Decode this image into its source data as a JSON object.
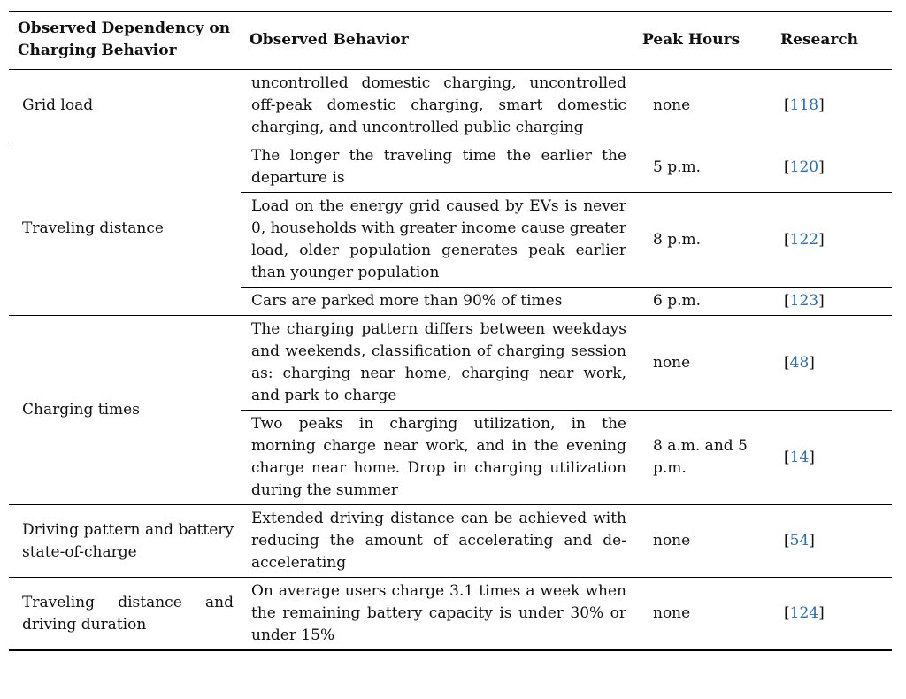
{
  "table": {
    "headers": {
      "dependency": "Observed Dependency on Charging Behavior",
      "behavior": "Observed Behavior",
      "peak": "Peak Hours",
      "research": "Research"
    },
    "groups": [
      {
        "dependency": "Grid load",
        "rows": [
          {
            "behavior": "uncontrolled domestic charging, uncontrolled off-peak domestic charging, smart domestic charging, and uncontrolled public charging",
            "peak": "none",
            "ref": "118"
          }
        ]
      },
      {
        "dependency": "Traveling distance",
        "rows": [
          {
            "behavior": "The longer the traveling time the earlier the departure is",
            "peak": "5 p.m.",
            "ref": "120"
          },
          {
            "behavior": "Load on the energy grid caused by EVs is never 0, households with greater income cause greater load, older population generates peak earlier than younger population",
            "peak": "8 p.m.",
            "ref": "122"
          },
          {
            "behavior": "Cars are parked more than 90% of times",
            "peak": "6 p.m.",
            "ref": "123"
          }
        ]
      },
      {
        "dependency": "Charging times",
        "rows": [
          {
            "behavior": "The charging pattern differs between weekdays and weekends, classification of charging session as: charging near home, charging near work, and park to charge",
            "peak": "none",
            "ref": "48"
          },
          {
            "behavior": "Two peaks in charging utilization, in the morning charge near work, and in the evening charge near home. Drop in charging utilization during the summer",
            "peak": "8 a.m. and 5 p.m.",
            "ref": "14"
          }
        ]
      },
      {
        "dependency": "Driving pattern and battery state-of-charge",
        "rows": [
          {
            "behavior": "Extended driving distance can be achieved with reducing the amount of accelerating and de-accelerating",
            "peak": "none",
            "ref": "54"
          }
        ]
      },
      {
        "dependency": "Traveling distance and driving duration",
        "rows": [
          {
            "behavior": "On average users charge 3.1 times a week when the remaining battery capacity is under 30% or under 15%",
            "peak": "none",
            "ref": "124"
          }
        ]
      }
    ]
  }
}
